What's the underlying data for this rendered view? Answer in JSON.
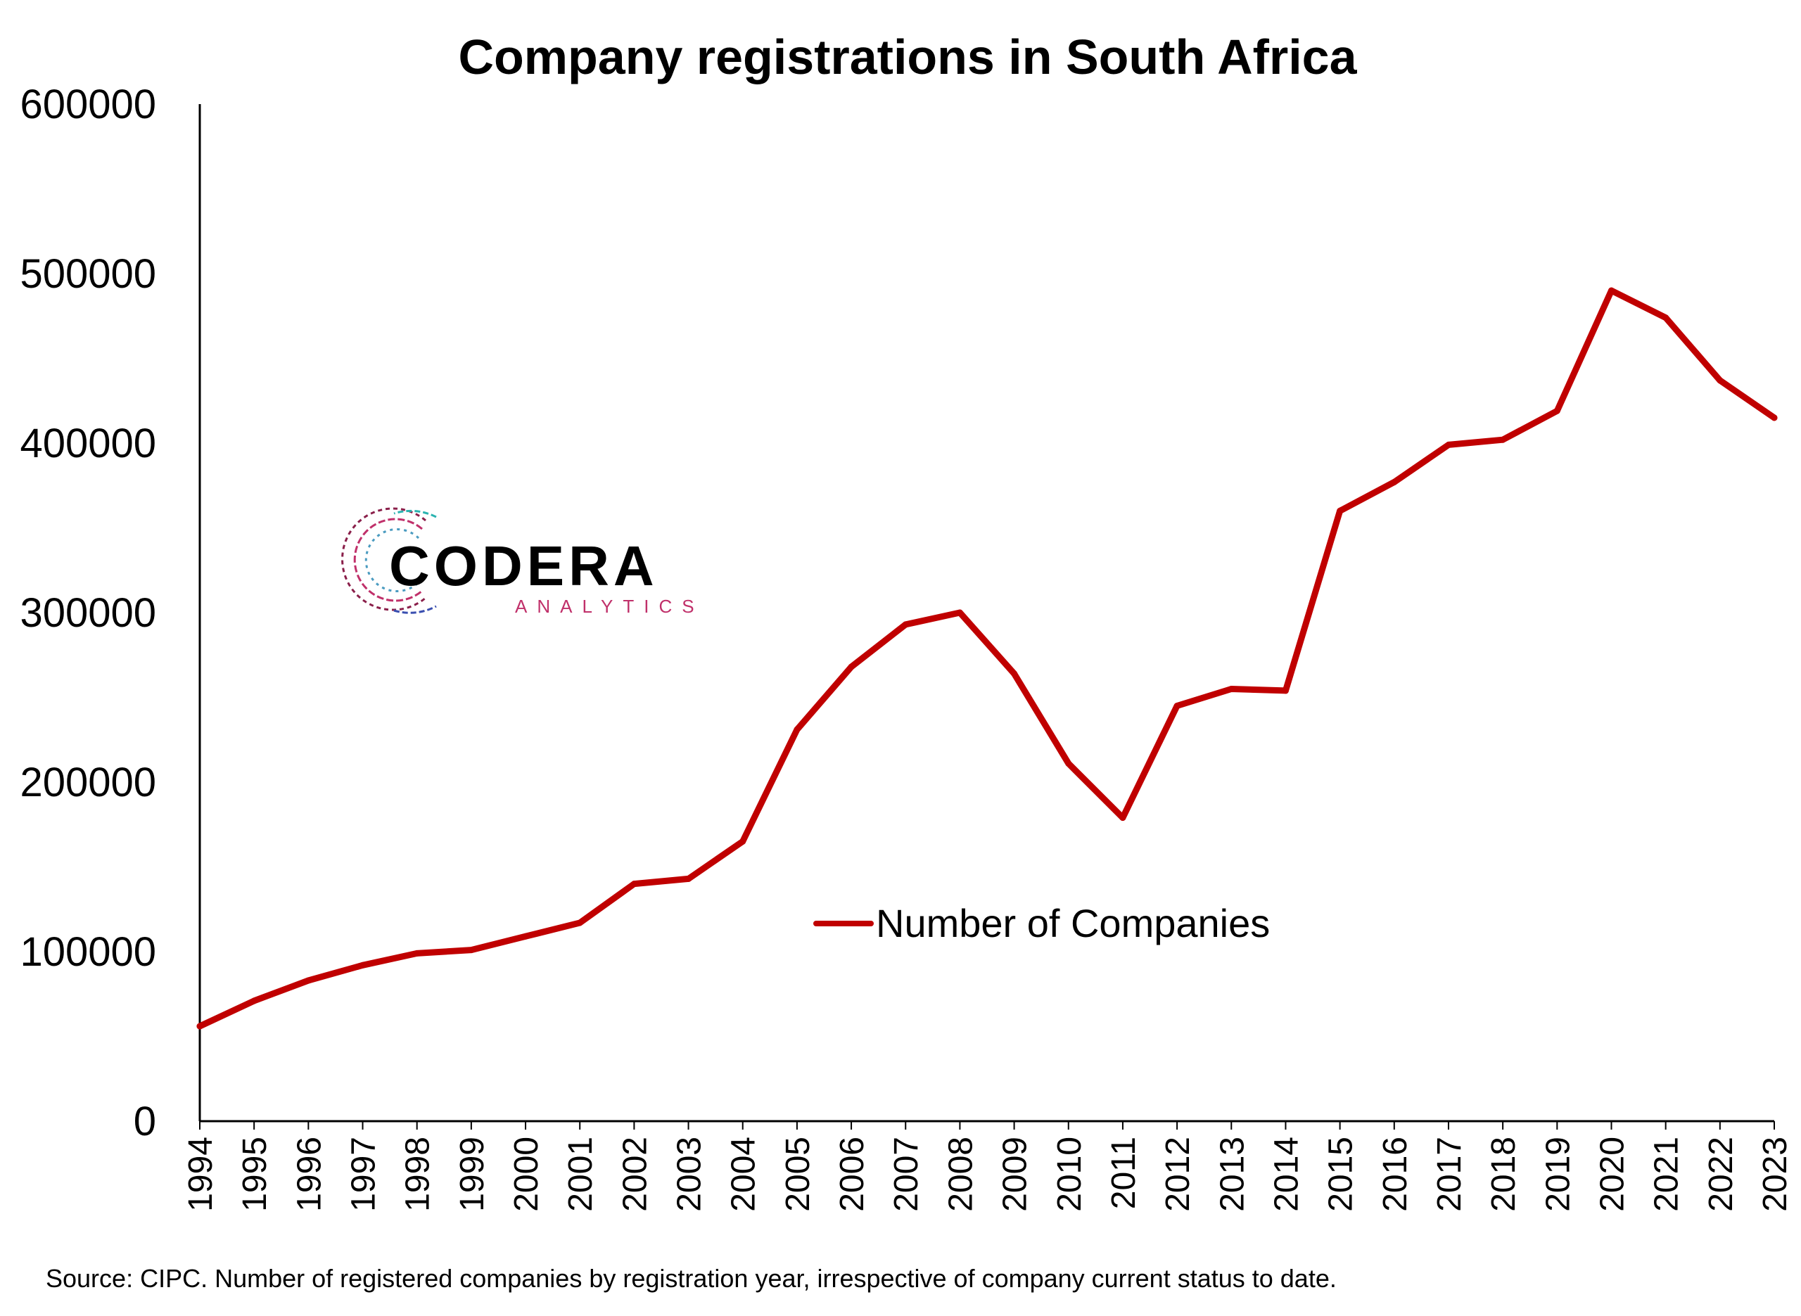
{
  "chart_data": {
    "type": "line",
    "title": "Company registrations in South Africa",
    "xlabel": "",
    "ylabel": "",
    "x": [
      "1994",
      "1995",
      "1996",
      "1997",
      "1998",
      "1999",
      "2000",
      "2001",
      "2002",
      "2003",
      "2004",
      "2005",
      "2006",
      "2007",
      "2008",
      "2009",
      "2010",
      "2011",
      "2012",
      "2013",
      "2014",
      "2015",
      "2016",
      "2017",
      "2018",
      "2019",
      "2020",
      "2021",
      "2022",
      "2023"
    ],
    "series": [
      {
        "name": "Number of Companies",
        "color": "#C00000",
        "values": [
          56000,
          71000,
          83000,
          92000,
          99000,
          101000,
          109000,
          117000,
          140000,
          143000,
          165000,
          231000,
          268000,
          293000,
          300000,
          264000,
          211000,
          179000,
          245000,
          255000,
          254000,
          360000,
          377000,
          399000,
          402000,
          419000,
          490000,
          474000,
          437000,
          415000
        ]
      }
    ],
    "ylim": [
      0,
      600000
    ],
    "yticks": [
      "0",
      "100000",
      "200000",
      "300000",
      "400000",
      "500000",
      "600000"
    ],
    "grid": false,
    "legend_position": "center-right"
  },
  "logo": {
    "name": "CODERA",
    "tagline": "ANALYTICS"
  },
  "source_note": "Source: CIPC. Number of registered companies by registration year, irrespective of  company current status to date."
}
